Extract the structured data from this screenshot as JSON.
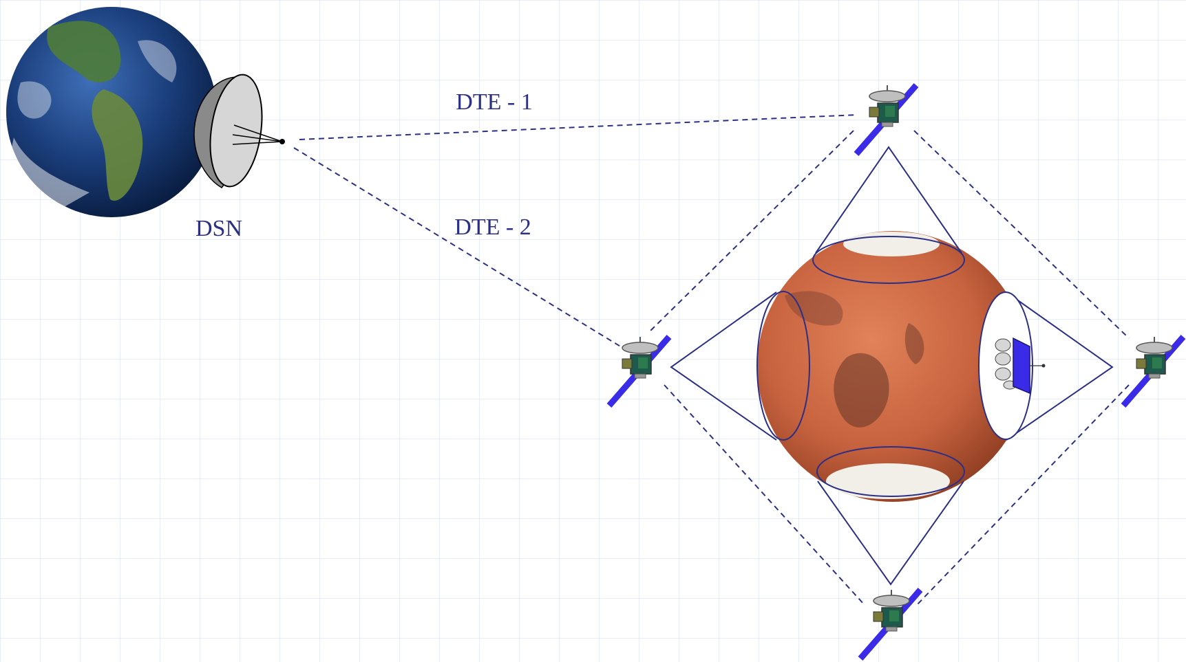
{
  "labels": {
    "ground_station": "DSN",
    "link_1": "DTE - 1",
    "link_2": "DTE - 2"
  },
  "colors": {
    "line": "#2b2f86",
    "solar_panel": "#3a2be8",
    "mars": "#c8633f",
    "earth_ocean": "#1a3d7a",
    "earth_land": "#4f7d3a",
    "dish": "#cfcfcf"
  },
  "icons": [
    "earth-icon",
    "dish-antenna-icon",
    "mars-icon",
    "satellite-icon",
    "lander-icon"
  ]
}
